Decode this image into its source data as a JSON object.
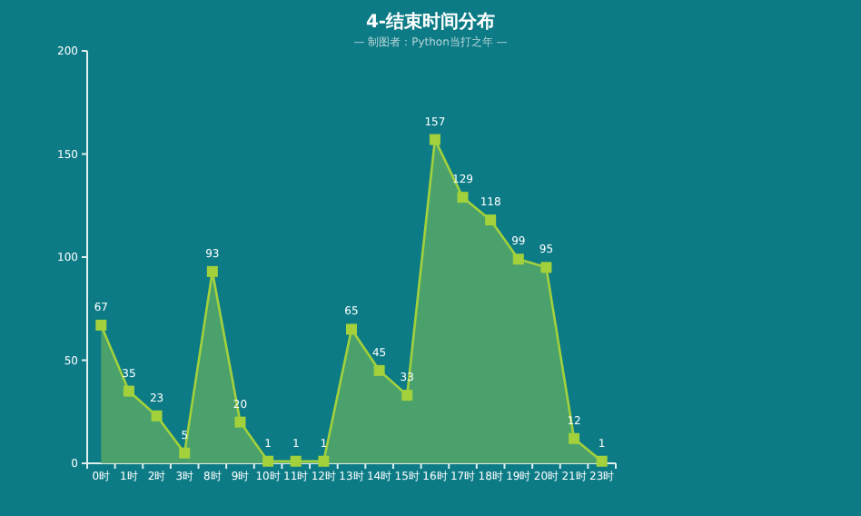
{
  "chart_data": {
    "type": "area",
    "title": "4-结束时间分布",
    "subtitle": "— 制图者：Python当打之年 —",
    "categories": [
      "0时",
      "1时",
      "2时",
      "3时",
      "8时",
      "9时",
      "10时",
      "11时",
      "12时",
      "13时",
      "14时",
      "15时",
      "16时",
      "17时",
      "18时",
      "19时",
      "20时",
      "21时",
      "23时"
    ],
    "series": [
      {
        "color": "#a3d13c",
        "values": [
          67,
          35,
          23,
          5,
          93,
          20,
          1,
          1,
          1,
          65,
          45,
          33,
          157,
          129,
          118,
          99,
          95,
          12,
          1
        ]
      }
    ],
    "ylim": [
      0,
      200
    ],
    "yticks": [
      0,
      50,
      100,
      150,
      200
    ],
    "grid": false,
    "marker": "square",
    "line_style": "solid",
    "data_labels": true
  }
}
